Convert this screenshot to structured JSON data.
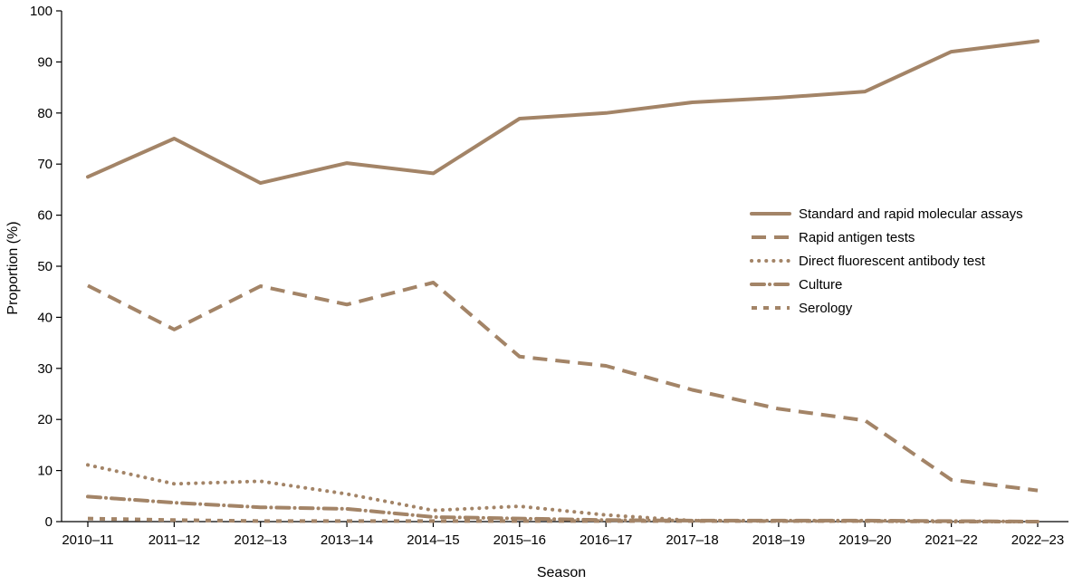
{
  "chart_data": {
    "type": "line",
    "xlabel": "Season",
    "ylabel": "Proportion (%)",
    "ylim": [
      0,
      100
    ],
    "yticks": [
      0,
      10,
      20,
      30,
      40,
      50,
      60,
      70,
      80,
      90,
      100
    ],
    "categories": [
      "2010–11",
      "2011–12",
      "2012–13",
      "2013–14",
      "2014–15",
      "2015–16",
      "2016–17",
      "2017–18",
      "2018–19",
      "2019–20",
      "2021–22",
      "2022–23"
    ],
    "legend_position": "right",
    "line_color": "#A38467",
    "series": [
      {
        "name": "Standard and rapid molecular assays",
        "style": "solid",
        "values": [
          67.5,
          75,
          66.3,
          70.2,
          68.2,
          78.9,
          80.0,
          82.1,
          83.0,
          84.2,
          92.0,
          94.1
        ]
      },
      {
        "name": "Rapid antigen tests",
        "style": "dashed",
        "values": [
          46.2,
          37.6,
          46.1,
          42.5,
          46.8,
          32.3,
          30.5,
          25.8,
          22.1,
          19.8,
          8.2,
          6.1
        ]
      },
      {
        "name": "Direct fluorescent antibody test",
        "style": "dotted",
        "values": [
          11.1,
          7.4,
          7.9,
          5.4,
          2.2,
          3.0,
          1.3,
          0.2,
          0.1,
          0.1,
          0.0,
          0.0
        ]
      },
      {
        "name": "Culture",
        "style": "dashdot",
        "values": [
          4.9,
          3.7,
          2.8,
          2.5,
          0.9,
          0.6,
          0.3,
          0.2,
          0.2,
          0.2,
          0.1,
          0.0
        ]
      },
      {
        "name": "Serology",
        "style": "shortdash",
        "values": [
          0.6,
          0.3,
          0.1,
          0.1,
          0.1,
          0.1,
          0.1,
          0.1,
          0.1,
          0.1,
          0.0,
          0.0
        ]
      }
    ]
  }
}
